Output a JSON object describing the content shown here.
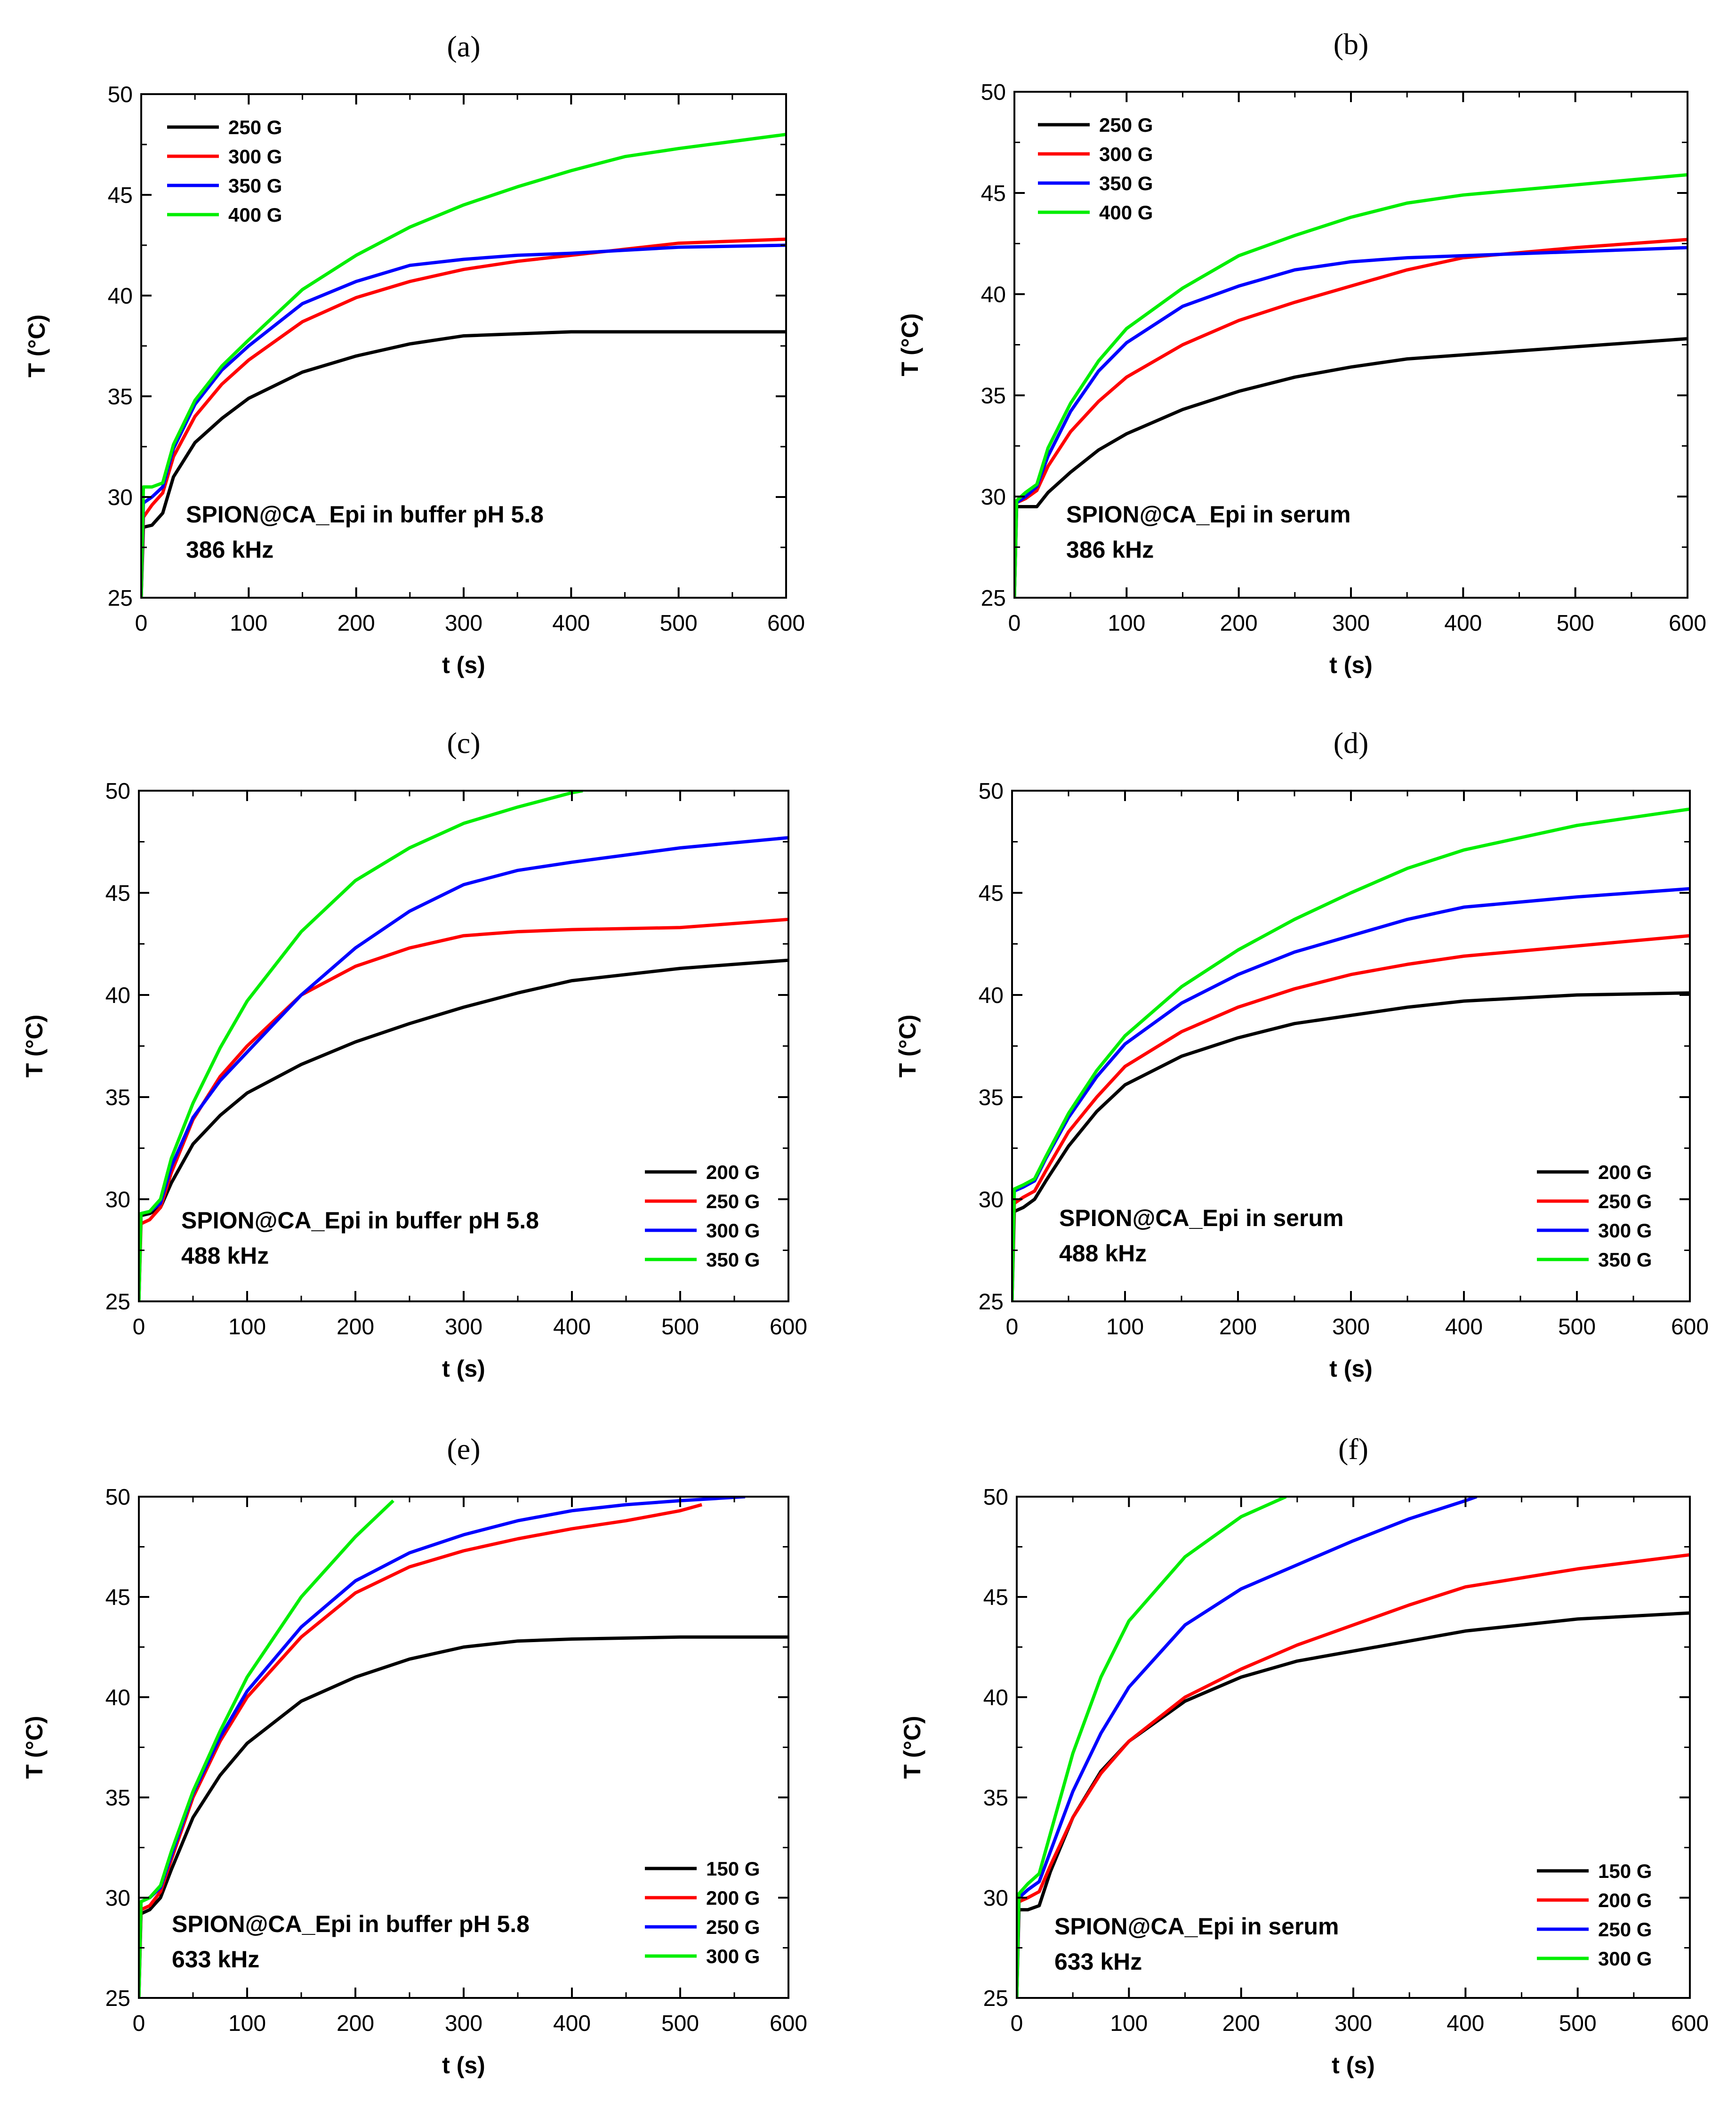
{
  "figure": {
    "panels": [
      "a",
      "b",
      "c",
      "d",
      "e",
      "f"
    ]
  },
  "chart_data": [
    {
      "panel_label": "(a)",
      "type": "line",
      "title": "",
      "xlabel": "t (s)",
      "ylabel": "T (°C)",
      "xlim": [
        0,
        600
      ],
      "ylim": [
        25,
        50
      ],
      "xticks": [
        0,
        100,
        200,
        300,
        400,
        500,
        600
      ],
      "yticks": [
        25,
        30,
        35,
        40,
        45,
        50
      ],
      "legend_position": "top-left",
      "annotation": [
        "SPION@CA_Epi in buffer pH 5.8",
        "386 kHz"
      ],
      "series": [
        {
          "name": "250 G",
          "color": "#000000",
          "x": [
            0,
            2,
            10,
            20,
            30,
            50,
            75,
            100,
            150,
            200,
            250,
            300,
            350,
            400,
            500,
            600
          ],
          "y": [
            25,
            28.5,
            28.6,
            29.2,
            31.0,
            32.7,
            33.9,
            34.9,
            36.2,
            37.0,
            37.6,
            38.0,
            38.1,
            38.2,
            38.2,
            38.2
          ]
        },
        {
          "name": "300 G",
          "color": "#ff0000",
          "x": [
            0,
            2,
            10,
            20,
            30,
            50,
            75,
            100,
            150,
            200,
            250,
            300,
            350,
            400,
            500,
            600
          ],
          "y": [
            25,
            29.0,
            29.6,
            30.2,
            32.0,
            34.0,
            35.6,
            36.8,
            38.7,
            39.9,
            40.7,
            41.3,
            41.7,
            42.0,
            42.6,
            42.8
          ]
        },
        {
          "name": "350 G",
          "color": "#0000ff",
          "x": [
            0,
            2,
            10,
            20,
            30,
            50,
            75,
            100,
            150,
            200,
            250,
            300,
            350,
            400,
            500,
            600
          ],
          "y": [
            25,
            29.7,
            30.0,
            30.5,
            32.4,
            34.6,
            36.3,
            37.5,
            39.6,
            40.7,
            41.5,
            41.8,
            42.0,
            42.1,
            42.4,
            42.5
          ]
        },
        {
          "name": "400 G",
          "color": "#00ee00",
          "x": [
            0,
            2,
            10,
            20,
            30,
            50,
            75,
            100,
            150,
            200,
            250,
            300,
            350,
            400,
            450,
            500,
            600
          ],
          "y": [
            25,
            30.5,
            30.5,
            30.7,
            32.6,
            34.8,
            36.5,
            37.8,
            40.3,
            42.0,
            43.4,
            44.5,
            45.4,
            46.2,
            46.9,
            47.3,
            48.0
          ]
        }
      ]
    },
    {
      "panel_label": "(b)",
      "type": "line",
      "title": "",
      "xlabel": "t (s)",
      "ylabel": "T (°C)",
      "xlim": [
        0,
        600
      ],
      "ylim": [
        25,
        50
      ],
      "xticks": [
        0,
        100,
        200,
        300,
        400,
        500,
        600
      ],
      "yticks": [
        25,
        30,
        35,
        40,
        45,
        50
      ],
      "legend_position": "top-left",
      "annotation": [
        "SPION@CA_Epi in serum",
        "386 kHz"
      ],
      "series": [
        {
          "name": "250 G",
          "color": "#000000",
          "x": [
            0,
            2,
            10,
            20,
            30,
            50,
            75,
            100,
            150,
            200,
            250,
            300,
            350,
            400,
            500,
            600
          ],
          "y": [
            25,
            29.5,
            29.5,
            29.5,
            30.2,
            31.2,
            32.3,
            33.1,
            34.3,
            35.2,
            35.9,
            36.4,
            36.8,
            37.0,
            37.4,
            37.8
          ]
        },
        {
          "name": "300 G",
          "color": "#ff0000",
          "x": [
            0,
            2,
            10,
            20,
            30,
            50,
            75,
            100,
            150,
            200,
            250,
            300,
            350,
            400,
            500,
            600
          ],
          "y": [
            25,
            29.7,
            29.9,
            30.3,
            31.5,
            33.2,
            34.7,
            35.9,
            37.5,
            38.7,
            39.6,
            40.4,
            41.2,
            41.8,
            42.3,
            42.7
          ]
        },
        {
          "name": "350 G",
          "color": "#0000ff",
          "x": [
            0,
            2,
            10,
            20,
            30,
            50,
            75,
            100,
            150,
            200,
            250,
            300,
            350,
            400,
            500,
            600
          ],
          "y": [
            25,
            29.7,
            30.0,
            30.5,
            32.0,
            34.2,
            36.2,
            37.6,
            39.4,
            40.4,
            41.2,
            41.6,
            41.8,
            41.9,
            42.1,
            42.3
          ]
        },
        {
          "name": "400 G",
          "color": "#00ee00",
          "x": [
            0,
            2,
            10,
            20,
            30,
            50,
            75,
            100,
            150,
            200,
            250,
            300,
            350,
            400,
            500,
            600
          ],
          "y": [
            25,
            29.8,
            30.2,
            30.6,
            32.4,
            34.6,
            36.7,
            38.3,
            40.3,
            41.9,
            42.9,
            43.8,
            44.5,
            44.9,
            45.4,
            45.9
          ]
        }
      ]
    },
    {
      "panel_label": "(c)",
      "type": "line",
      "title": "",
      "xlabel": "t (s)",
      "ylabel": "T (°C)",
      "xlim": [
        0,
        600
      ],
      "ylim": [
        25,
        50
      ],
      "xticks": [
        0,
        100,
        200,
        300,
        400,
        500,
        600
      ],
      "yticks": [
        25,
        30,
        35,
        40,
        45,
        50
      ],
      "legend_position": "bottom-right",
      "annotation": [
        "SPION@CA_Epi in buffer pH 5.8",
        "488 kHz"
      ],
      "series": [
        {
          "name": "200 G",
          "color": "#000000",
          "x": [
            0,
            2,
            10,
            20,
            30,
            50,
            75,
            100,
            150,
            200,
            250,
            300,
            350,
            400,
            500,
            600
          ],
          "y": [
            25,
            29.2,
            29.3,
            29.6,
            30.8,
            32.7,
            34.1,
            35.2,
            36.6,
            37.7,
            38.6,
            39.4,
            40.1,
            40.7,
            41.3,
            41.7
          ]
        },
        {
          "name": "250 G",
          "color": "#ff0000",
          "x": [
            0,
            2,
            10,
            20,
            30,
            50,
            75,
            100,
            150,
            200,
            250,
            300,
            350,
            400,
            500,
            600
          ],
          "y": [
            25,
            28.8,
            29.0,
            29.6,
            31.3,
            33.9,
            36.0,
            37.5,
            40.0,
            41.4,
            42.3,
            42.9,
            43.1,
            43.2,
            43.3,
            43.7
          ]
        },
        {
          "name": "300 G",
          "color": "#0000ff",
          "x": [
            0,
            2,
            10,
            20,
            30,
            50,
            75,
            100,
            150,
            200,
            250,
            300,
            350,
            400,
            500,
            600
          ],
          "y": [
            25,
            29.3,
            29.4,
            29.8,
            31.6,
            34.0,
            35.8,
            37.2,
            40.0,
            42.3,
            44.1,
            45.4,
            46.1,
            46.5,
            47.2,
            47.7
          ]
        },
        {
          "name": "350 G",
          "color": "#00ee00",
          "x": [
            0,
            2,
            10,
            20,
            30,
            50,
            75,
            100,
            150,
            200,
            250,
            300,
            350,
            400,
            410
          ],
          "y": [
            25,
            29.3,
            29.4,
            30.0,
            32.0,
            34.7,
            37.4,
            39.7,
            43.1,
            45.6,
            47.2,
            48.4,
            49.2,
            49.9,
            50.0
          ]
        }
      ]
    },
    {
      "panel_label": "(d)",
      "type": "line",
      "title": "",
      "xlabel": "t (s)",
      "ylabel": "T (°C)",
      "xlim": [
        0,
        600
      ],
      "ylim": [
        25,
        50
      ],
      "xticks": [
        0,
        100,
        200,
        300,
        400,
        500,
        600
      ],
      "yticks": [
        25,
        30,
        35,
        40,
        45,
        50
      ],
      "legend_position": "bottom-right",
      "annotation": [
        "SPION@CA_Epi in serum",
        "488 kHz"
      ],
      "series": [
        {
          "name": "200 G",
          "color": "#000000",
          "x": [
            0,
            2,
            10,
            20,
            30,
            50,
            75,
            100,
            150,
            200,
            250,
            300,
            350,
            400,
            500,
            600
          ],
          "y": [
            25,
            29.4,
            29.6,
            30.0,
            30.9,
            32.6,
            34.3,
            35.6,
            37.0,
            37.9,
            38.6,
            39.0,
            39.4,
            39.7,
            40.0,
            40.1
          ]
        },
        {
          "name": "250 G",
          "color": "#ff0000",
          "x": [
            0,
            2,
            10,
            20,
            30,
            50,
            75,
            100,
            150,
            200,
            250,
            300,
            350,
            400,
            500,
            600
          ],
          "y": [
            25,
            29.8,
            30.1,
            30.4,
            31.4,
            33.3,
            35.0,
            36.5,
            38.2,
            39.4,
            40.3,
            41.0,
            41.5,
            41.9,
            42.4,
            42.9
          ]
        },
        {
          "name": "300 G",
          "color": "#0000ff",
          "x": [
            0,
            2,
            10,
            20,
            30,
            50,
            75,
            100,
            150,
            200,
            250,
            300,
            350,
            400,
            500,
            600
          ],
          "y": [
            25,
            30.4,
            30.6,
            30.9,
            32.0,
            34.0,
            36.0,
            37.6,
            39.6,
            41.0,
            42.1,
            42.9,
            43.7,
            44.3,
            44.8,
            45.2
          ]
        },
        {
          "name": "350 G",
          "color": "#00ee00",
          "x": [
            0,
            2,
            10,
            20,
            30,
            50,
            75,
            100,
            150,
            200,
            250,
            300,
            350,
            400,
            500,
            600
          ],
          "y": [
            25,
            30.5,
            30.7,
            31.0,
            32.1,
            34.2,
            36.3,
            38.0,
            40.4,
            42.2,
            43.7,
            45.0,
            46.2,
            47.1,
            48.3,
            49.1
          ]
        }
      ]
    },
    {
      "panel_label": "(e)",
      "type": "line",
      "title": "",
      "xlabel": "t (s)",
      "ylabel": "T (°C)",
      "xlim": [
        0,
        600
      ],
      "ylim": [
        25,
        50
      ],
      "xticks": [
        0,
        100,
        200,
        300,
        400,
        500,
        600
      ],
      "yticks": [
        25,
        30,
        35,
        40,
        45,
        50
      ],
      "legend_position": "bottom-right",
      "annotation": [
        "SPION@CA_Epi in buffer pH 5.8",
        "633 kHz"
      ],
      "series": [
        {
          "name": "150 G",
          "color": "#000000",
          "x": [
            0,
            2,
            10,
            20,
            30,
            50,
            75,
            100,
            150,
            200,
            250,
            300,
            350,
            400,
            500,
            600
          ],
          "y": [
            25,
            29.2,
            29.4,
            30.0,
            31.4,
            34.0,
            36.1,
            37.7,
            39.8,
            41.0,
            41.9,
            42.5,
            42.8,
            42.9,
            43.0,
            43.0
          ]
        },
        {
          "name": "200 G",
          "color": "#ff0000",
          "x": [
            0,
            2,
            10,
            20,
            30,
            50,
            75,
            100,
            150,
            200,
            250,
            300,
            350,
            400,
            450,
            500,
            520
          ],
          "y": [
            25,
            29.4,
            29.6,
            30.3,
            31.9,
            35.0,
            37.8,
            40.0,
            43.0,
            45.2,
            46.5,
            47.3,
            47.9,
            48.4,
            48.8,
            49.3,
            49.6
          ]
        },
        {
          "name": "250 G",
          "color": "#0000ff",
          "x": [
            0,
            2,
            10,
            20,
            30,
            50,
            75,
            100,
            150,
            200,
            250,
            300,
            350,
            400,
            450,
            500,
            560
          ],
          "y": [
            25,
            29.8,
            30.0,
            30.5,
            32.1,
            35.2,
            38.0,
            40.3,
            43.5,
            45.8,
            47.2,
            48.1,
            48.8,
            49.3,
            49.6,
            49.8,
            50.0
          ]
        },
        {
          "name": "300 G",
          "color": "#00ee00",
          "x": [
            0,
            2,
            10,
            20,
            30,
            50,
            75,
            100,
            150,
            200,
            235
          ],
          "y": [
            25,
            29.8,
            30.0,
            30.6,
            32.3,
            35.3,
            38.3,
            41.0,
            45.0,
            48.0,
            49.8
          ]
        }
      ]
    },
    {
      "panel_label": "(f)",
      "type": "line",
      "title": "",
      "xlabel": "t (s)",
      "ylabel": "T (°C)",
      "xlim": [
        0,
        600
      ],
      "ylim": [
        25,
        50
      ],
      "xticks": [
        0,
        100,
        200,
        300,
        400,
        500,
        600
      ],
      "yticks": [
        25,
        30,
        35,
        40,
        45,
        50
      ],
      "legend_position": "bottom-right",
      "annotation": [
        "SPION@CA_Epi in serum",
        "633 kHz"
      ],
      "series": [
        {
          "name": "150 G",
          "color": "#000000",
          "x": [
            0,
            2,
            10,
            20,
            30,
            50,
            75,
            100,
            150,
            200,
            250,
            300,
            350,
            400,
            500,
            600
          ],
          "y": [
            25,
            29.4,
            29.4,
            29.6,
            31.3,
            34.0,
            36.3,
            37.8,
            39.8,
            41.0,
            41.8,
            42.3,
            42.8,
            43.3,
            43.9,
            44.2
          ]
        },
        {
          "name": "200 G",
          "color": "#ff0000",
          "x": [
            0,
            2,
            10,
            20,
            30,
            50,
            75,
            100,
            150,
            200,
            250,
            300,
            350,
            400,
            500,
            600
          ],
          "y": [
            25,
            29.8,
            30.0,
            30.3,
            31.6,
            34.0,
            36.2,
            37.8,
            40.0,
            41.4,
            42.6,
            43.6,
            44.6,
            45.5,
            46.4,
            47.1
          ]
        },
        {
          "name": "250 G",
          "color": "#0000ff",
          "x": [
            0,
            2,
            10,
            20,
            30,
            50,
            75,
            100,
            150,
            200,
            250,
            300,
            350,
            400,
            410
          ],
          "y": [
            25,
            30.0,
            30.4,
            30.8,
            32.3,
            35.3,
            38.2,
            40.5,
            43.6,
            45.4,
            46.6,
            47.8,
            48.9,
            49.8,
            50.0
          ]
        },
        {
          "name": "300 G",
          "color": "#00ee00",
          "x": [
            0,
            2,
            10,
            20,
            30,
            50,
            75,
            100,
            150,
            200,
            240
          ],
          "y": [
            25,
            30.2,
            30.7,
            31.2,
            33.2,
            37.2,
            41.0,
            43.8,
            47.0,
            49.0,
            50.0
          ]
        }
      ]
    }
  ]
}
